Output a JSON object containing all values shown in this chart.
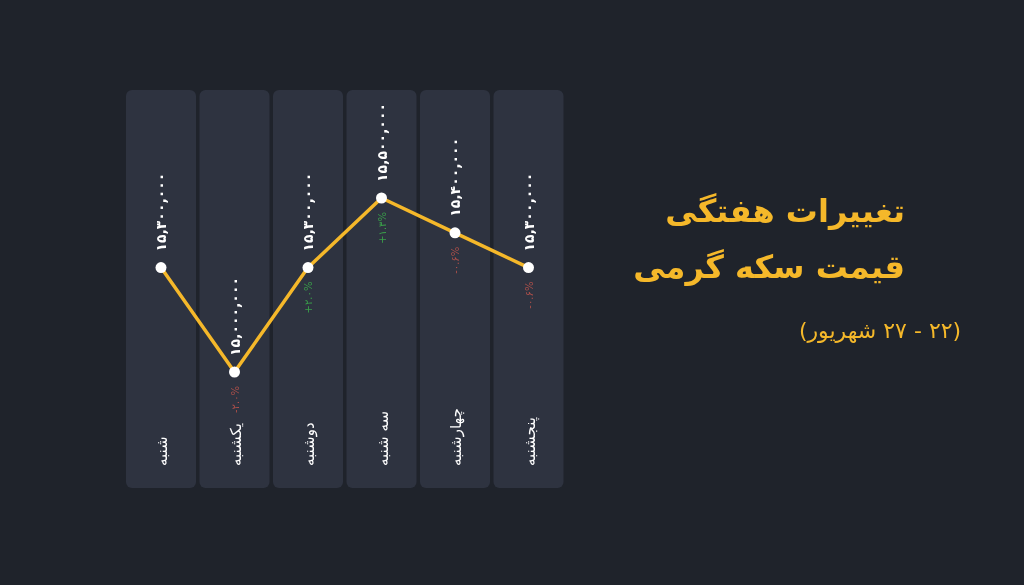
{
  "chart_data": {
    "type": "line",
    "title": "تغییرات هفتگی\nقیمت سکه گرمی",
    "subtitle": "(۲۲ - ۲۷ شهریور)",
    "categories": [
      "شنبه",
      "یکشنبه",
      "دوشنبه",
      "سه شنبه",
      "چهارشنبه",
      "پنجشنبه"
    ],
    "series": [
      {
        "color": "#f5b82a",
        "values": [
          15300000,
          15000000,
          15300000,
          15500000,
          15400000,
          15300000
        ],
        "value_labels": [
          "۱۵,۳۰۰,۰۰۰",
          "۱۵,۰۰۰,۰۰۰",
          "۱۵,۳۰۰,۰۰۰",
          "۱۵,۵۰۰,۰۰۰",
          "۱۵,۴۰۰,۰۰۰",
          "۱۵,۳۰۰,۰۰۰"
        ]
      }
    ],
    "annotations": [
      {
        "text": "-۲.۰%",
        "x": "یکشنبه",
        "y": 15000000
      },
      {
        "text": "+۲.۰%",
        "x": "دوشنبه",
        "y": 15300000
      },
      {
        "text": "+۱.۳%",
        "x": "سه شنبه",
        "y": 15500000
      },
      {
        "text": "-۰.۶%",
        "x": "چهارشنبه",
        "y": 15400000
      },
      {
        "text": "-۰.۶%",
        "x": "پنجشنبه",
        "y": 15300000
      }
    ],
    "marker": "circle",
    "line_style": "solid"
  }
}
